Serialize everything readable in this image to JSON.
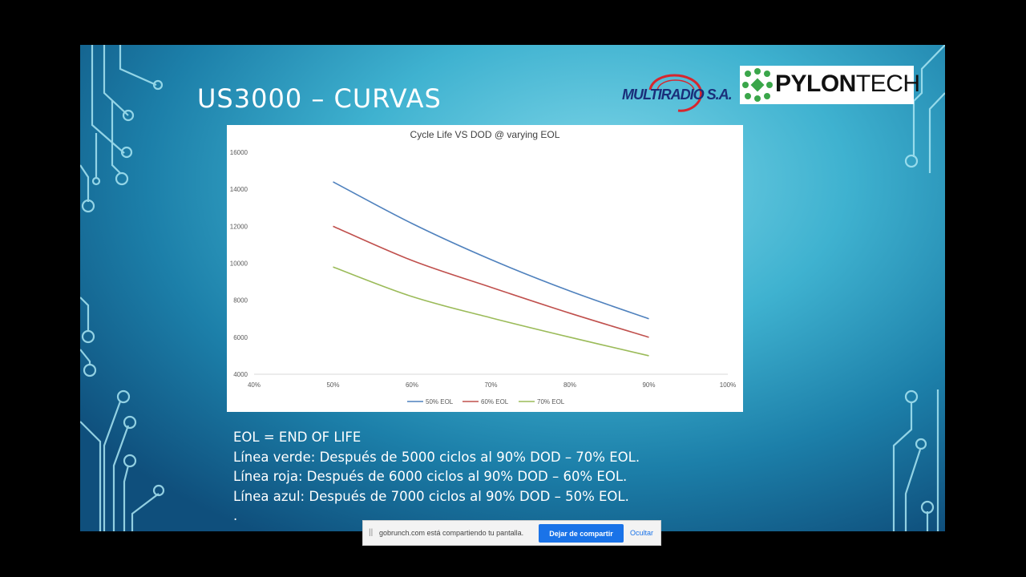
{
  "slide": {
    "title": "US3000 – CURVAS",
    "logo_multiradio": "MULTIRADIO S.A.",
    "logo_pylontech_bold": "PYLON",
    "logo_pylontech_light": "TECH",
    "notes": [
      "EOL = END OF LIFE",
      "Línea verde: Después de 5000 ciclos al 90% DOD – 70% EOL.",
      "Línea roja: Después de 6000 ciclos al 90% DOD – 60% EOL.",
      "Línea azul: Después de 7000 ciclos al 90% DOD – 50% EOL.",
      "."
    ]
  },
  "chart_data": {
    "type": "line",
    "title": "Cycle Life VS DOD @ varying EOL",
    "x_ticks": [
      "40%",
      "50%",
      "60%",
      "70%",
      "80%",
      "90%",
      "100%"
    ],
    "y_ticks": [
      "4000",
      "6000",
      "8000",
      "10000",
      "12000",
      "14000",
      "16000"
    ],
    "xlim": [
      40,
      100
    ],
    "ylim": [
      4000,
      16000
    ],
    "grid": false,
    "legend_position": "bottom",
    "series": [
      {
        "name": "50% EOL",
        "color": "#4f81bd",
        "x": [
          50,
          60,
          70,
          80,
          90
        ],
        "values": [
          14400,
          12150,
          10200,
          8500,
          7000
        ]
      },
      {
        "name": "60% EOL",
        "color": "#c0504d",
        "x": [
          50,
          60,
          70,
          80,
          90
        ],
        "values": [
          12000,
          10150,
          8700,
          7300,
          6000
        ]
      },
      {
        "name": "70% EOL",
        "color": "#9bbb59",
        "x": [
          50,
          60,
          70,
          80,
          90
        ],
        "values": [
          9800,
          8200,
          7050,
          6000,
          5000
        ]
      }
    ]
  },
  "share_bar": {
    "grip": "||",
    "message": "gobrunch.com está compartiendo tu pantalla.",
    "stop_label": "Dejar de compartir",
    "hide_label": "Ocultar"
  }
}
